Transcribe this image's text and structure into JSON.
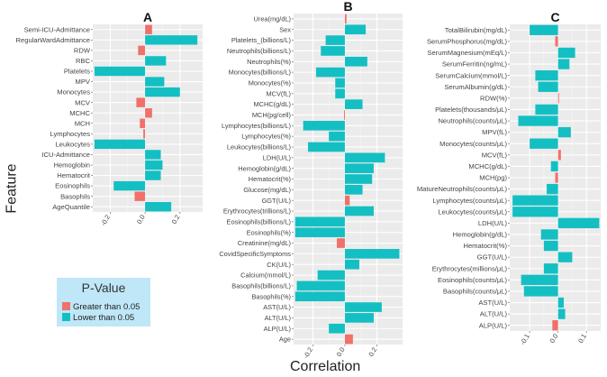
{
  "chart_data": {
    "type": "bar",
    "orientation": "horizontal",
    "xlabel": "Correlation",
    "ylabel": "Feature",
    "legend": {
      "title": "P-Value",
      "entries": [
        {
          "label": "Greater than 0.05",
          "color": "#F0706A"
        },
        {
          "label": "Lower than 0.05",
          "color": "#14BFC3"
        }
      ]
    },
    "panels": [
      {
        "title": "A",
        "xlim": [
          -0.3,
          0.33
        ],
        "xticks": [
          "-0.2",
          "0.0",
          "0.2"
        ],
        "tick_values": [
          -0.2,
          0.0,
          0.2
        ],
        "bars": [
          {
            "label": "Semi-ICU-Admittance",
            "value": 0.04,
            "sig": false
          },
          {
            "label": "RegularWardAdmittance",
            "value": 0.3,
            "sig": true
          },
          {
            "label": "RDW",
            "value": -0.04,
            "sig": false
          },
          {
            "label": "RBC",
            "value": 0.12,
            "sig": true
          },
          {
            "label": "Platelets",
            "value": -0.29,
            "sig": true
          },
          {
            "label": "MPV",
            "value": 0.11,
            "sig": true
          },
          {
            "label": "Monocytes",
            "value": 0.2,
            "sig": true
          },
          {
            "label": "MCV",
            "value": -0.05,
            "sig": false
          },
          {
            "label": "MCHC",
            "value": 0.04,
            "sig": false
          },
          {
            "label": "MCH",
            "value": -0.03,
            "sig": false
          },
          {
            "label": "Lymphocytes",
            "value": -0.01,
            "sig": false
          },
          {
            "label": "Leukocytes",
            "value": -0.29,
            "sig": true
          },
          {
            "label": "ICU-Admittance",
            "value": 0.09,
            "sig": true
          },
          {
            "label": "Hemoglobin",
            "value": 0.1,
            "sig": true
          },
          {
            "label": "Hematocrit",
            "value": 0.09,
            "sig": true
          },
          {
            "label": "Eosinophils",
            "value": -0.18,
            "sig": true
          },
          {
            "label": "Basophils",
            "value": -0.06,
            "sig": false
          },
          {
            "label": "AgeQuantile",
            "value": 0.15,
            "sig": true
          }
        ]
      },
      {
        "title": "B",
        "xlim": [
          -0.32,
          0.36
        ],
        "xticks": [
          "-0.2",
          "0.0",
          "0.2"
        ],
        "tick_values": [
          -0.2,
          0.0,
          0.2
        ],
        "bars": [
          {
            "label": "Urea(mg/dL)",
            "value": 0.01,
            "sig": false
          },
          {
            "label": "Sex",
            "value": 0.13,
            "sig": true
          },
          {
            "label": "Platelets_(billions/L)",
            "value": -0.12,
            "sig": true
          },
          {
            "label": "Neutrophils(billions/L)",
            "value": -0.15,
            "sig": true
          },
          {
            "label": "Neutrophils(%)",
            "value": 0.14,
            "sig": true
          },
          {
            "label": "Monocytes(billions/L)",
            "value": -0.18,
            "sig": true
          },
          {
            "label": "Monocytes(%)",
            "value": -0.06,
            "sig": true
          },
          {
            "label": "MCV(fL)",
            "value": -0.06,
            "sig": true
          },
          {
            "label": "MCHC(g/dL)",
            "value": 0.11,
            "sig": true
          },
          {
            "label": "MCH(pg/cell)",
            "value": -0.005,
            "sig": false
          },
          {
            "label": "Lymphocytes(billions/L)",
            "value": -0.26,
            "sig": true
          },
          {
            "label": "Lymphocytes(%)",
            "value": -0.1,
            "sig": true
          },
          {
            "label": "Leukocytes(billions/L)",
            "value": -0.23,
            "sig": true
          },
          {
            "label": "LDH(U/L)",
            "value": 0.25,
            "sig": true
          },
          {
            "label": "Hemoglobin(g/dL)",
            "value": 0.18,
            "sig": true
          },
          {
            "label": "Hematocrit(%)",
            "value": 0.17,
            "sig": true
          },
          {
            "label": "Glucose(mg/dL)",
            "value": 0.11,
            "sig": true
          },
          {
            "label": "GGT(U/L)",
            "value": 0.03,
            "sig": false
          },
          {
            "label": "Erythrocytes(trillions/L)",
            "value": 0.18,
            "sig": true
          },
          {
            "label": "Eosinophils(billions/L)",
            "value": -0.31,
            "sig": true
          },
          {
            "label": "Eosinophils(%)",
            "value": -0.31,
            "sig": true
          },
          {
            "label": "Creatinine(mg/dL)",
            "value": -0.05,
            "sig": false
          },
          {
            "label": "CovidSpecificSymptoms",
            "value": 0.34,
            "sig": true
          },
          {
            "label": "CK(U/L)",
            "value": 0.09,
            "sig": true
          },
          {
            "label": "Calcium(mmol/L)",
            "value": -0.17,
            "sig": true
          },
          {
            "label": "Basophils(billions/L)",
            "value": -0.3,
            "sig": true
          },
          {
            "label": "Basophils(%)",
            "value": -0.31,
            "sig": true
          },
          {
            "label": "AST(U/L)",
            "value": 0.23,
            "sig": true
          },
          {
            "label": "ALT(U/L)",
            "value": 0.18,
            "sig": true
          },
          {
            "label": "ALP(U/L)",
            "value": -0.1,
            "sig": true
          },
          {
            "label": "Age",
            "value": 0.05,
            "sig": false
          }
        ]
      },
      {
        "title": "C",
        "xlim": [
          -0.17,
          0.15
        ],
        "xticks": [
          "-0.1",
          "0.0",
          "0.1"
        ],
        "tick_values": [
          -0.1,
          0.0,
          0.1
        ],
        "bars": [
          {
            "label": "TotalBilirubin(mg/dL)",
            "value": -0.1,
            "sig": true
          },
          {
            "label": "SerumPhosphorus(mg/dL)",
            "value": -0.01,
            "sig": false
          },
          {
            "label": "SerumMagnesium(mEq/L)",
            "value": 0.06,
            "sig": true
          },
          {
            "label": "SerumFerritin(ng/mL)",
            "value": 0.04,
            "sig": true
          },
          {
            "label": "SerumCalcium(mmol/L)",
            "value": -0.08,
            "sig": true
          },
          {
            "label": "SerumAlbumin(g/dL)",
            "value": -0.07,
            "sig": true
          },
          {
            "label": "RDW(%)",
            "value": 0.0,
            "sig": false
          },
          {
            "label": "Platelets(thousands/μL)",
            "value": -0.08,
            "sig": true
          },
          {
            "label": "Neutrophils(counts/μL)",
            "value": -0.14,
            "sig": true
          },
          {
            "label": "MPV(fL)",
            "value": 0.045,
            "sig": true
          },
          {
            "label": "Monocytes(counts/μL)",
            "value": -0.1,
            "sig": true
          },
          {
            "label": "MCV(fL)",
            "value": 0.01,
            "sig": false
          },
          {
            "label": "MCHC(g/dL)",
            "value": -0.025,
            "sig": true
          },
          {
            "label": "MCH(pg)",
            "value": -0.01,
            "sig": false
          },
          {
            "label": "MatureNeutrophils(counts/μL)",
            "value": -0.04,
            "sig": true
          },
          {
            "label": "Lymphocytes(counts/μL)",
            "value": -0.16,
            "sig": true
          },
          {
            "label": "Leukocytes(counts/μL)",
            "value": -0.16,
            "sig": true
          },
          {
            "label": "LDH(U/L)",
            "value": 0.145,
            "sig": true
          },
          {
            "label": "Hemoglobin(g/dL)",
            "value": -0.06,
            "sig": true
          },
          {
            "label": "Hematocrit(%)",
            "value": -0.05,
            "sig": true
          },
          {
            "label": "GGT(U/L)",
            "value": 0.05,
            "sig": true
          },
          {
            "label": "Erythrocytes(millions/μL)",
            "value": -0.05,
            "sig": true
          },
          {
            "label": "Eosinophils(counts/μL)",
            "value": -0.13,
            "sig": true
          },
          {
            "label": "Basophils(counts/μL)",
            "value": -0.12,
            "sig": true
          },
          {
            "label": "AST(U/L)",
            "value": 0.02,
            "sig": true
          },
          {
            "label": "ALT(U/L)",
            "value": 0.025,
            "sig": true
          },
          {
            "label": "ALP(U/L)",
            "value": -0.02,
            "sig": false
          }
        ]
      }
    ]
  }
}
